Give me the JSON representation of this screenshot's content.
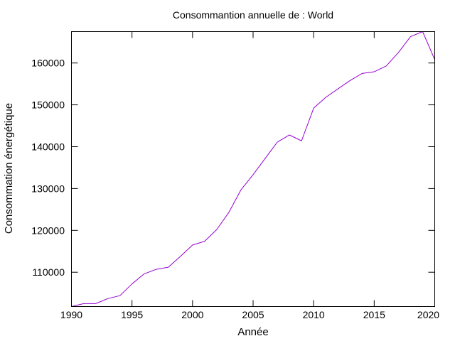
{
  "chart_data": {
    "type": "line",
    "title": "Consommantion annuelle de : World",
    "xlabel": "Année",
    "ylabel": "Consommation énergétique",
    "xlim": [
      1990,
      2020
    ],
    "ylim": [
      101800,
      167500
    ],
    "grid": false,
    "legend": "none",
    "x_ticks": [
      1990,
      1995,
      2000,
      2005,
      2010,
      2015,
      2020
    ],
    "y_ticks": [
      110000,
      120000,
      130000,
      140000,
      150000,
      160000
    ],
    "x_tick_labels": [
      "1990",
      "1995",
      "2000",
      "2005",
      "2010",
      "2015",
      "2020"
    ],
    "y_tick_labels": [
      "110000",
      "120000",
      "130000",
      "140000",
      "150000",
      "160000"
    ],
    "series": [
      {
        "color": "#9400d3",
        "x": [
          1990,
          1991,
          1992,
          1993,
          1994,
          1995,
          1996,
          1997,
          1998,
          1999,
          2000,
          2001,
          2002,
          2003,
          2004,
          2005,
          2006,
          2007,
          2008,
          2009,
          2010,
          2011,
          2012,
          2013,
          2014,
          2015,
          2016,
          2017,
          2018,
          2019,
          2020
        ],
        "values": [
          101800,
          102500,
          102500,
          103700,
          104400,
          107200,
          109600,
          110700,
          111200,
          113800,
          116500,
          117400,
          120200,
          124300,
          129700,
          133300,
          137200,
          141100,
          142800,
          141400,
          149200,
          151800,
          153800,
          155800,
          157500,
          157900,
          159300,
          162500,
          166300,
          167500,
          160800
        ]
      }
    ]
  }
}
